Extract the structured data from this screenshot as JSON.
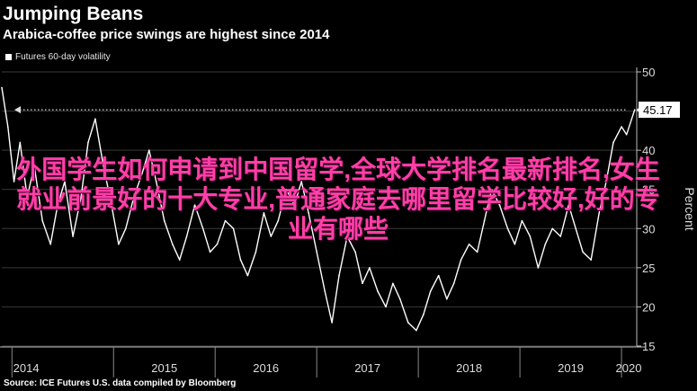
{
  "header": {
    "title": "Jumping Beans",
    "subtitle": "Arabica-coffee price swings are highest since 2014"
  },
  "legend": {
    "label": "Futures 60-day volatility"
  },
  "source": "Source: ICE Futures U.S. data compiled by Bloomberg",
  "overlay_text": "外国学生如何申请到中国留学,全球大学排名最新排名,女生就业前景好的十大专业,普通家庭去哪里留学比较好,好的专业有哪些",
  "colors": {
    "background": "#000000",
    "line": "#ffffff",
    "grid": "#3a3a3a",
    "overlay": "#ff3fa6"
  },
  "chart_data": {
    "type": "line",
    "ylabel": "Percent",
    "y_axis_position": "right",
    "ylim": [
      15,
      50
    ],
    "yticks": [
      15,
      20,
      25,
      30,
      35,
      40,
      45,
      50
    ],
    "xticks": [
      "2014",
      "2015",
      "2016",
      "2017",
      "2018",
      "2019",
      "2020"
    ],
    "xlim": [
      2013.9,
      2020.15
    ],
    "grid": true,
    "latest_value": "45.17",
    "reference_line": 45.17,
    "series": [
      {
        "name": "Futures 60-day volatility",
        "x": [
          2013.9,
          2013.96,
          2014.02,
          2014.08,
          2014.15,
          2014.22,
          2014.3,
          2014.38,
          2014.45,
          2014.52,
          2014.6,
          2014.68,
          2014.75,
          2014.82,
          2014.9,
          2014.98,
          2015.05,
          2015.12,
          2015.2,
          2015.28,
          2015.35,
          2015.42,
          2015.5,
          2015.58,
          2015.65,
          2015.72,
          2015.8,
          2015.88,
          2015.95,
          2016.02,
          2016.1,
          2016.18,
          2016.25,
          2016.32,
          2016.4,
          2016.48,
          2016.55,
          2016.62,
          2016.7,
          2016.78,
          2016.85,
          2016.92,
          2017.0,
          2017.08,
          2017.15,
          2017.22,
          2017.3,
          2017.38,
          2017.45,
          2017.52,
          2017.6,
          2017.68,
          2017.75,
          2017.82,
          2017.9,
          2017.98,
          2018.05,
          2018.12,
          2018.2,
          2018.28,
          2018.35,
          2018.42,
          2018.5,
          2018.58,
          2018.65,
          2018.72,
          2018.8,
          2018.88,
          2018.95,
          2019.02,
          2019.1,
          2019.18,
          2019.25,
          2019.32,
          2019.4,
          2019.48,
          2019.55,
          2019.62,
          2019.7,
          2019.78,
          2019.85,
          2019.92,
          2020.0,
          2020.05,
          2020.1,
          2020.13
        ],
        "values": [
          48,
          43,
          36,
          41,
          34,
          38,
          31,
          28,
          33,
          36,
          29,
          34,
          41,
          44,
          38,
          33,
          28,
          30,
          34,
          37,
          40,
          36,
          31,
          28,
          26,
          29,
          33,
          30,
          27,
          28,
          31,
          30,
          26,
          24,
          27,
          32,
          29,
          31,
          35,
          33,
          36,
          32,
          27,
          22,
          18,
          24,
          29,
          27,
          23,
          25,
          22,
          20,
          23,
          21,
          18,
          17,
          19,
          22,
          24,
          21,
          23,
          26,
          28,
          27,
          31,
          35,
          33,
          30,
          28,
          31,
          29,
          25,
          28,
          30,
          29,
          33,
          30,
          27,
          26,
          32,
          36,
          41,
          43,
          42,
          44,
          45.17
        ]
      }
    ]
  }
}
